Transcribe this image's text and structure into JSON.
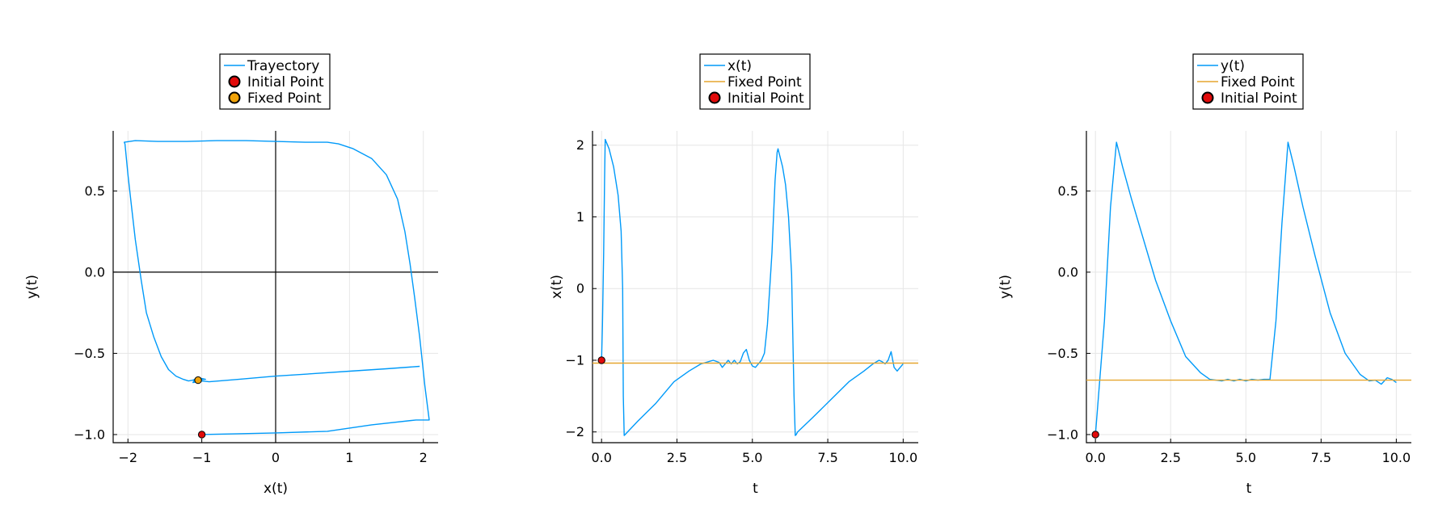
{
  "colors": {
    "series": "#009af9",
    "fixed_line": "#e6a62f",
    "initial_point": "#e10b0b",
    "fixed_point": "#f0a30a",
    "marker_edge": "#000000"
  },
  "chart_data": [
    {
      "type": "line",
      "title": "",
      "xlabel": "x(t)",
      "ylabel": "y(t)",
      "xlim": [
        -2.2,
        2.2
      ],
      "ylim": [
        -1.05,
        0.87
      ],
      "xticks": [
        -2,
        -1,
        0,
        1,
        2
      ],
      "xtick_labels": [
        "−2",
        "−1",
        "0",
        "1",
        "2"
      ],
      "yticks": [
        -1.0,
        -0.5,
        0.0,
        0.5
      ],
      "ytick_labels": [
        "−1.0",
        "−0.5",
        "0.0",
        "0.5"
      ],
      "grid": true,
      "zero_lines": true,
      "legend_position": "top",
      "legend": [
        {
          "label": "Trayectory",
          "kind": "line",
          "color_key": "series"
        },
        {
          "label": "Initial Point",
          "kind": "marker",
          "color_key": "initial_point"
        },
        {
          "label": "Fixed Point",
          "kind": "marker",
          "color_key": "fixed_point"
        }
      ],
      "series": [
        {
          "kind": "line",
          "color_key": "series",
          "x": [
            -1.0,
            -0.5,
            0.0,
            0.7,
            1.3,
            1.9,
            2.08,
            2.02,
            1.95,
            1.88,
            1.82,
            1.75,
            1.65,
            1.5,
            1.3,
            1.05,
            0.85,
            0.7,
            0.4,
            0.0,
            -0.4,
            -0.8,
            -1.2,
            -1.6,
            -1.9,
            -2.05,
            -2.04,
            -2.0,
            -1.95,
            -1.9,
            -1.82,
            -1.75,
            -1.65,
            -1.55,
            -1.45,
            -1.35,
            -1.25,
            -1.18,
            -1.12,
            -1.05,
            -0.95,
            -1.1,
            -1.12,
            -1.0,
            -0.9,
            -0.5,
            0.0,
            0.5,
            1.0,
            1.5,
            1.95
          ],
          "y": [
            -1.0,
            -0.995,
            -0.99,
            -0.98,
            -0.94,
            -0.91,
            -0.91,
            -0.7,
            -0.4,
            -0.15,
            0.05,
            0.25,
            0.45,
            0.6,
            0.7,
            0.76,
            0.79,
            0.8,
            0.8,
            0.805,
            0.81,
            0.81,
            0.805,
            0.805,
            0.81,
            0.8,
            0.79,
            0.6,
            0.4,
            0.2,
            -0.05,
            -0.25,
            -0.4,
            -0.52,
            -0.6,
            -0.64,
            -0.66,
            -0.67,
            -0.665,
            -0.65,
            -0.66,
            -0.665,
            -0.68,
            -0.67,
            -0.675,
            -0.66,
            -0.64,
            -0.625,
            -0.61,
            -0.595,
            -0.58
          ]
        },
        {
          "kind": "marker",
          "color_key": "initial_point",
          "x": [
            -1.0
          ],
          "y": [
            -1.0
          ]
        },
        {
          "kind": "marker",
          "color_key": "fixed_point",
          "x": [
            -1.05
          ],
          "y": [
            -0.665
          ]
        }
      ]
    },
    {
      "type": "line",
      "title": "",
      "xlabel": "t",
      "ylabel": "x(t)",
      "xlim": [
        -0.3,
        10.5
      ],
      "ylim": [
        -2.15,
        2.2
      ],
      "xticks": [
        0,
        2.5,
        5.0,
        7.5,
        10.0
      ],
      "xtick_labels": [
        "0.0",
        "2.5",
        "5.0",
        "7.5",
        "10.0"
      ],
      "yticks": [
        -2,
        -1,
        0,
        1,
        2
      ],
      "ytick_labels": [
        "−2",
        "−1",
        "0",
        "1",
        "2"
      ],
      "grid": true,
      "zero_lines": false,
      "legend_position": "top",
      "legend": [
        {
          "label": "x(t)",
          "kind": "line",
          "color_key": "series"
        },
        {
          "label": "Fixed Point",
          "kind": "line",
          "color_key": "fixed_line"
        },
        {
          "label": "Initial Point",
          "kind": "marker",
          "color_key": "initial_point"
        }
      ],
      "series": [
        {
          "kind": "line",
          "color_key": "series",
          "x": [
            0.0,
            0.03,
            0.07,
            0.1,
            0.12,
            0.25,
            0.4,
            0.55,
            0.65,
            0.7,
            0.72,
            0.75,
            1.2,
            1.8,
            2.4,
            2.9,
            3.3,
            3.7,
            3.9,
            4.0,
            4.1,
            4.2,
            4.3,
            4.4,
            4.5,
            4.6,
            4.7,
            4.8,
            4.9,
            5.0,
            5.1,
            5.2,
            5.3,
            5.4,
            5.5,
            5.65,
            5.75,
            5.82,
            5.85,
            5.88,
            6.0,
            6.1,
            6.2,
            6.3,
            6.38,
            6.42,
            6.45,
            6.5,
            7.0,
            7.6,
            8.2,
            8.7,
            9.0,
            9.2,
            9.3,
            9.4,
            9.5,
            9.6,
            9.7,
            9.8,
            9.9,
            10.0
          ],
          "y": [
            -1.0,
            -0.5,
            0.5,
            1.5,
            2.08,
            1.95,
            1.7,
            1.3,
            0.8,
            0.0,
            -1.5,
            -2.05,
            -1.85,
            -1.6,
            -1.3,
            -1.15,
            -1.05,
            -1.0,
            -1.03,
            -1.1,
            -1.05,
            -1.0,
            -1.05,
            -1.0,
            -1.05,
            -1.02,
            -0.9,
            -0.85,
            -1.0,
            -1.08,
            -1.1,
            -1.05,
            -1.0,
            -0.9,
            -0.5,
            0.5,
            1.5,
            1.9,
            1.95,
            1.9,
            1.7,
            1.45,
            1.0,
            0.2,
            -1.5,
            -2.05,
            -2.04,
            -2.0,
            -1.8,
            -1.55,
            -1.3,
            -1.15,
            -1.05,
            -1.0,
            -1.02,
            -1.05,
            -1.0,
            -0.88,
            -1.1,
            -1.15,
            -1.1,
            -1.05
          ]
        },
        {
          "kind": "line",
          "color_key": "fixed_line",
          "x": [
            -0.3,
            10.5
          ],
          "y": [
            -1.04,
            -1.04
          ]
        },
        {
          "kind": "marker",
          "color_key": "initial_point",
          "x": [
            0.0
          ],
          "y": [
            -1.0
          ]
        }
      ]
    },
    {
      "type": "line",
      "title": "",
      "xlabel": "t",
      "ylabel": "y(t)",
      "xlim": [
        -0.3,
        10.5
      ],
      "ylim": [
        -1.05,
        0.87
      ],
      "xticks": [
        0,
        2.5,
        5.0,
        7.5,
        10.0
      ],
      "xtick_labels": [
        "0.0",
        "2.5",
        "5.0",
        "7.5",
        "10.0"
      ],
      "yticks": [
        -1.0,
        -0.5,
        0.0,
        0.5
      ],
      "ytick_labels": [
        "−1.0",
        "−0.5",
        "0.0",
        "0.5"
      ],
      "grid": true,
      "zero_lines": false,
      "legend_position": "top",
      "legend": [
        {
          "label": "y(t)",
          "kind": "line",
          "color_key": "series"
        },
        {
          "label": "Fixed Point",
          "kind": "line",
          "color_key": "fixed_line"
        },
        {
          "label": "Initial Point",
          "kind": "marker",
          "color_key": "initial_point"
        }
      ],
      "series": [
        {
          "kind": "line",
          "color_key": "series",
          "x": [
            0.0,
            0.3,
            0.5,
            0.7,
            0.9,
            1.2,
            1.6,
            2.0,
            2.5,
            3.0,
            3.5,
            3.8,
            4.0,
            4.2,
            4.4,
            4.6,
            4.8,
            5.0,
            5.2,
            5.4,
            5.6,
            5.8,
            6.0,
            6.2,
            6.4,
            6.6,
            6.9,
            7.3,
            7.8,
            8.3,
            8.8,
            9.1,
            9.3,
            9.5,
            9.7,
            9.85,
            10.0
          ],
          "y": [
            -1.0,
            -0.3,
            0.4,
            0.8,
            0.65,
            0.45,
            0.2,
            -0.05,
            -0.3,
            -0.52,
            -0.62,
            -0.66,
            -0.665,
            -0.67,
            -0.66,
            -0.67,
            -0.66,
            -0.67,
            -0.66,
            -0.665,
            -0.66,
            -0.66,
            -0.3,
            0.3,
            0.8,
            0.65,
            0.4,
            0.1,
            -0.25,
            -0.5,
            -0.63,
            -0.67,
            -0.665,
            -0.69,
            -0.65,
            -0.66,
            -0.68
          ]
        },
        {
          "kind": "line",
          "color_key": "fixed_line",
          "x": [
            -0.3,
            10.5
          ],
          "y": [
            -0.665,
            -0.665
          ]
        },
        {
          "kind": "marker",
          "color_key": "initial_point",
          "x": [
            0.0
          ],
          "y": [
            -1.0
          ]
        }
      ]
    }
  ]
}
